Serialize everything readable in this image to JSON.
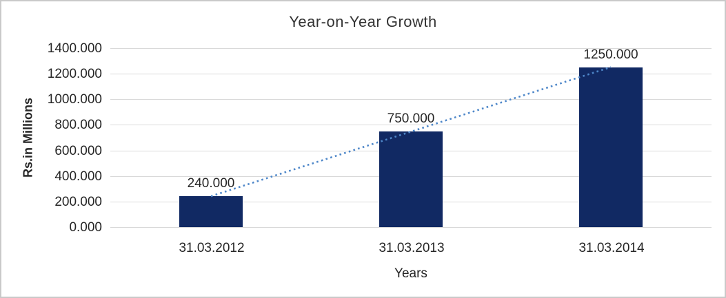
{
  "chart_data": {
    "type": "bar",
    "title": "Year-on-Year Growth",
    "categories": [
      "31.03.2012",
      "31.03.2013",
      "31.03.2014"
    ],
    "values": [
      240,
      750,
      1250
    ],
    "value_labels": [
      "240.000",
      "750.000",
      "1250.000"
    ],
    "xlabel": "Years",
    "ylabel": "Rs.in Millions",
    "ylim": [
      0,
      1400
    ],
    "ytick_step": 200,
    "ytick_labels": [
      "1400.000",
      "1200.000",
      "1000.000",
      "800.000",
      "600.000",
      "400.000",
      "200.000",
      "0.000"
    ],
    "grid": true,
    "legend": false,
    "bar_color": "#112963",
    "gridline_color": "#d9d9d9",
    "trendline": {
      "type": "linear",
      "style": "dotted",
      "color": "#4e87c9"
    }
  }
}
